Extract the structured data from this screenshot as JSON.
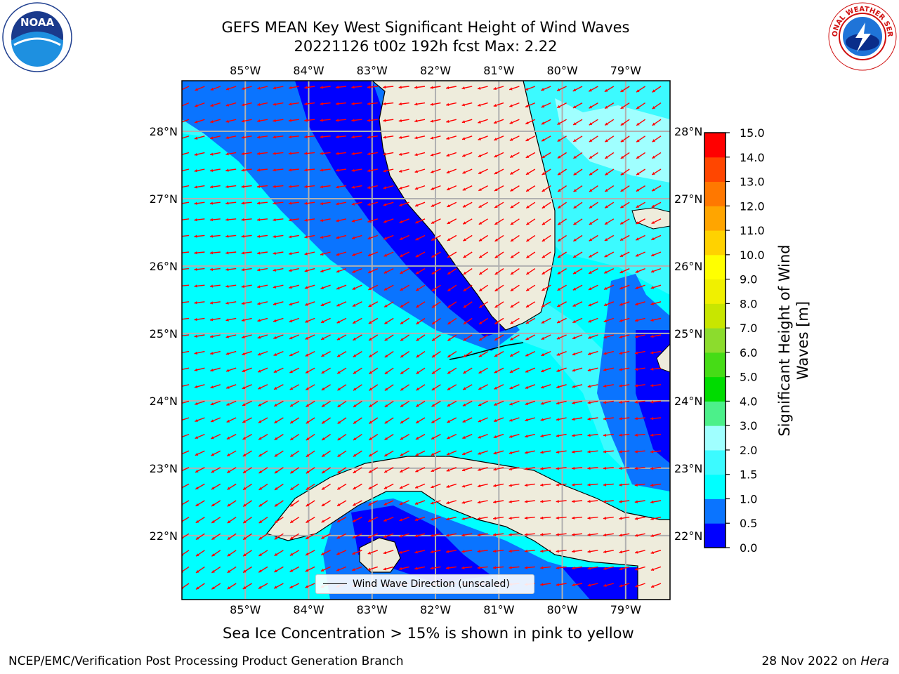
{
  "header": {
    "title_line1": "GEFS MEAN Key West Significant Height of Wind Waves",
    "title_line2": "20221126 t00z 192h fcst   Max: 2.22"
  },
  "logos": {
    "left": "NOAA",
    "right": "NATIONAL WEATHER SERVICE",
    "left_ring_text": "NATIONAL OCEANIC AND ATMOSPHERIC ADMINISTRATION · U.S. DEPARTMENT OF COMMERCE"
  },
  "map": {
    "lon_ticks": [
      "85°W",
      "84°W",
      "83°W",
      "82°W",
      "81°W",
      "80°W",
      "79°W"
    ],
    "lat_ticks": [
      "28°N",
      "27°N",
      "26°N",
      "25°N",
      "24°N",
      "23°N",
      "22°N"
    ],
    "lon_values": [
      -85,
      -84,
      -83,
      -82,
      -81,
      -80,
      -79
    ],
    "lat_values": [
      28,
      27,
      26,
      25,
      24,
      23,
      22
    ],
    "lon_range": [
      -86,
      -78.3
    ],
    "lat_range": [
      21.05,
      28.75
    ],
    "grid": true,
    "vector_color": "#ff0000",
    "land_color": "#eeecdc",
    "legend_label": "Wind Wave Direction (unscaled)"
  },
  "colorbar": {
    "label": "Significant Height of Wind Waves [m]",
    "ticks": [
      "0.0",
      "0.5",
      "1.0",
      "1.5",
      "2.0",
      "3.0",
      "4.0",
      "5.0",
      "6.0",
      "7.0",
      "8.0",
      "9.0",
      "10.0",
      "11.0",
      "12.0",
      "13.0",
      "14.0",
      "15.0"
    ],
    "colors": [
      "#0000ff",
      "#0a74ff",
      "#00ffff",
      "#3cfaff",
      "#a0ffff",
      "#4cf08a",
      "#00dc00",
      "#46dc16",
      "#8cdc2d",
      "#c8e600",
      "#f0f000",
      "#ffff00",
      "#ffd200",
      "#ffa500",
      "#ff7800",
      "#ff4600",
      "#ff0000"
    ]
  },
  "caption": "Sea Ice Concentration > 15% is shown in pink to yellow",
  "footer": {
    "left": "NCEP/EMC/Verification Post Processing Product Generation Branch",
    "right_date": "28 Nov 2022 on ",
    "right_machine": "Hera"
  }
}
